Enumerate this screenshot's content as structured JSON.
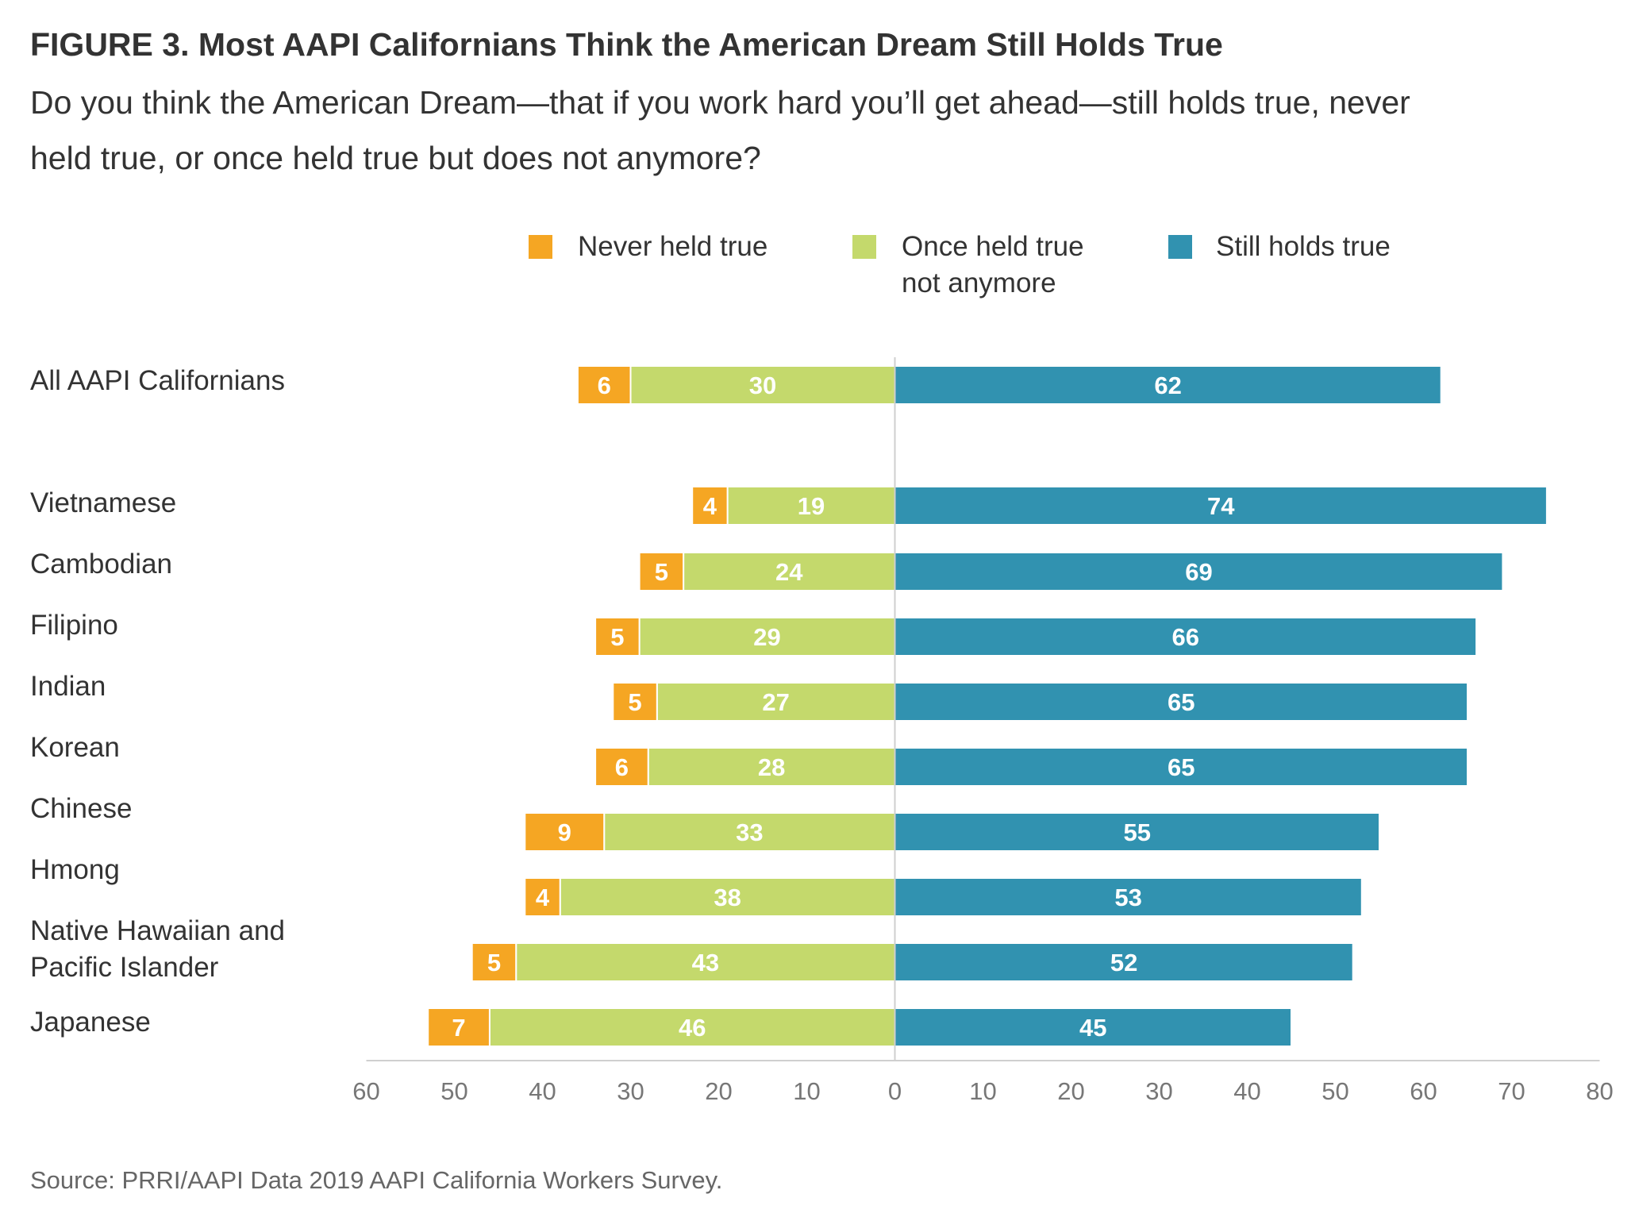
{
  "header": {
    "title": "FIGURE 3.  Most AAPI Californians Think the American Dream Still Holds True",
    "subtitle_lines": [
      "Do you think the American Dream—that if you work hard you’ll get ahead—still holds true, never",
      "held true, or once held true but does not anymore?"
    ]
  },
  "footer": {
    "source": "Source: PRRI/AAPI Data 2019 AAPI California Workers Survey."
  },
  "chart_data": {
    "type": "bar",
    "orientation": "horizontal-diverging",
    "categories": [
      [
        "All AAPI Californians"
      ],
      [
        "Vietnamese"
      ],
      [
        "Cambodian"
      ],
      [
        "Filipino"
      ],
      [
        "Indian"
      ],
      [
        "Korean"
      ],
      [
        "Chinese"
      ],
      [
        "Hmong"
      ],
      [
        "Native Hawaiian and",
        "Pacific Islander"
      ],
      [
        "Japanese"
      ]
    ],
    "series": [
      {
        "name": "Never held true",
        "color": "#f5a623",
        "side": "left",
        "values": [
          6,
          4,
          5,
          5,
          5,
          6,
          9,
          4,
          5,
          7
        ]
      },
      {
        "name": "Once held true not anymore",
        "legend_lines": [
          "Once held true",
          "not anymore"
        ],
        "color": "#c4d96c",
        "side": "left",
        "values": [
          30,
          19,
          24,
          29,
          27,
          28,
          33,
          38,
          43,
          46
        ]
      },
      {
        "name": "Still holds true",
        "color": "#3192b0",
        "side": "right",
        "values": [
          62,
          74,
          69,
          66,
          65,
          65,
          55,
          53,
          52,
          45
        ]
      }
    ],
    "x_ticks": [
      "60",
      "50",
      "40",
      "30",
      "20",
      "10",
      "0",
      "10",
      "20",
      "30",
      "40",
      "50",
      "60",
      "70",
      "80"
    ],
    "xlim": [
      -60,
      80
    ],
    "legend_position": "top",
    "grid": false
  }
}
